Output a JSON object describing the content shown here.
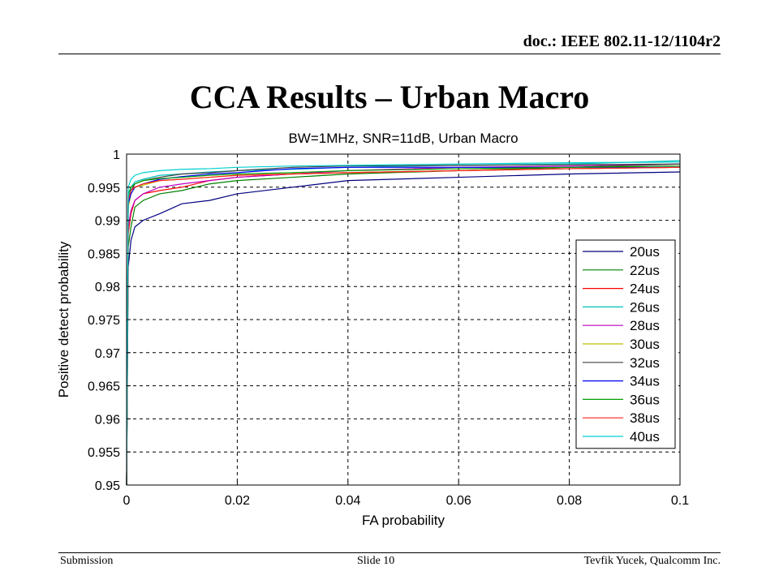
{
  "header": {
    "doc_id": "doc.: IEEE 802.11-12/1104r2"
  },
  "slide": {
    "title": "CCA Results – Urban Macro"
  },
  "footer": {
    "left": "Submission",
    "center": "Slide 10",
    "right": "Tevfik Yucek, Qualcomm Inc."
  },
  "chart_data": {
    "type": "line",
    "title": "BW=1MHz, SNR=11dB, Urban Macro",
    "xlabel": "FA probability",
    "ylabel": "Positive detect probability",
    "xlim": [
      0,
      0.1
    ],
    "ylim": [
      0.95,
      1
    ],
    "xticks": [
      "0",
      "0.02",
      "0.04",
      "0.06",
      "0.08",
      "0.1"
    ],
    "yticks": [
      "0.95",
      "0.955",
      "0.96",
      "0.965",
      "0.97",
      "0.975",
      "0.98",
      "0.985",
      "0.99",
      "0.995",
      "1"
    ],
    "grid": true,
    "legend_position": "right",
    "series": [
      {
        "name": "20us",
        "color": "#000080",
        "x": [
          0,
          0.0003,
          0.0008,
          0.0015,
          0.003,
          0.006,
          0.01,
          0.015,
          0.02,
          0.03,
          0.04,
          0.06,
          0.08,
          0.1
        ],
        "y": [
          0.95,
          0.983,
          0.987,
          0.989,
          0.99,
          0.991,
          0.9925,
          0.993,
          0.994,
          0.995,
          0.996,
          0.9965,
          0.997,
          0.9973
        ]
      },
      {
        "name": "22us",
        "color": "#008000",
        "x": [
          0,
          0.0003,
          0.0008,
          0.0015,
          0.003,
          0.006,
          0.01,
          0.015,
          0.02,
          0.03,
          0.04,
          0.06,
          0.08,
          0.1
        ],
        "y": [
          0.95,
          0.986,
          0.989,
          0.992,
          0.993,
          0.994,
          0.9945,
          0.9955,
          0.996,
          0.9965,
          0.997,
          0.9975,
          0.998,
          0.9985
        ]
      },
      {
        "name": "24us",
        "color": "#FF0000",
        "x": [
          0,
          0.0003,
          0.0008,
          0.0015,
          0.003,
          0.006,
          0.01,
          0.015,
          0.02,
          0.03,
          0.04,
          0.06,
          0.08,
          0.1
        ],
        "y": [
          0.95,
          0.988,
          0.991,
          0.993,
          0.994,
          0.9945,
          0.995,
          0.996,
          0.9965,
          0.997,
          0.9972,
          0.9975,
          0.9978,
          0.998
        ]
      },
      {
        "name": "26us",
        "color": "#00BFBF",
        "x": [
          0,
          0.0003,
          0.0008,
          0.0015,
          0.003,
          0.006,
          0.01,
          0.015,
          0.02,
          0.03,
          0.04,
          0.06,
          0.08,
          0.1
        ],
        "y": [
          0.95,
          0.9935,
          0.995,
          0.9958,
          0.9962,
          0.9968,
          0.997,
          0.9973,
          0.9975,
          0.9977,
          0.998,
          0.9983,
          0.9985,
          0.999
        ]
      },
      {
        "name": "28us",
        "color": "#BF00BF",
        "x": [
          0,
          0.0003,
          0.0008,
          0.0015,
          0.003,
          0.006,
          0.01,
          0.015,
          0.02,
          0.03,
          0.04,
          0.06,
          0.08,
          0.1
        ],
        "y": [
          0.95,
          0.989,
          0.9915,
          0.993,
          0.994,
          0.995,
          0.9955,
          0.996,
          0.9965,
          0.997,
          0.9975,
          0.998,
          0.9982,
          0.9985
        ]
      },
      {
        "name": "30us",
        "color": "#BFBF00",
        "x": [
          0,
          0.0003,
          0.0008,
          0.0015,
          0.003,
          0.006,
          0.01,
          0.015,
          0.02,
          0.03,
          0.04,
          0.06,
          0.08,
          0.1
        ],
        "y": [
          0.95,
          0.992,
          0.994,
          0.995,
          0.9953,
          0.996,
          0.9962,
          0.9965,
          0.9968,
          0.997,
          0.9972,
          0.9975,
          0.9978,
          0.998
        ]
      },
      {
        "name": "32us",
        "color": "#404040",
        "x": [
          0,
          0.0003,
          0.0008,
          0.0015,
          0.003,
          0.006,
          0.01,
          0.015,
          0.02,
          0.03,
          0.04,
          0.06,
          0.08,
          0.1
        ],
        "y": [
          0.95,
          0.993,
          0.9945,
          0.9955,
          0.996,
          0.9965,
          0.997,
          0.9972,
          0.9975,
          0.998,
          0.9982,
          0.9983,
          0.9984,
          0.9985
        ]
      },
      {
        "name": "34us",
        "color": "#0000FF",
        "x": [
          0,
          0.0003,
          0.0008,
          0.0015,
          0.003,
          0.006,
          0.01,
          0.015,
          0.02,
          0.03,
          0.04,
          0.06,
          0.08,
          0.1
        ],
        "y": [
          0.95,
          0.9925,
          0.994,
          0.995,
          0.9955,
          0.9962,
          0.9966,
          0.997,
          0.9972,
          0.9978,
          0.998,
          0.998,
          0.998,
          0.998
        ]
      },
      {
        "name": "36us",
        "color": "#00A000",
        "x": [
          0,
          0.0003,
          0.0008,
          0.0015,
          0.003,
          0.006,
          0.01,
          0.015,
          0.02,
          0.03,
          0.04,
          0.06,
          0.08,
          0.1
        ],
        "y": [
          0.95,
          0.994,
          0.995,
          0.9955,
          0.996,
          0.9963,
          0.9965,
          0.9968,
          0.997,
          0.9972,
          0.9975,
          0.9978,
          0.998,
          0.9982
        ]
      },
      {
        "name": "38us",
        "color": "#FF2020",
        "x": [
          0,
          0.0003,
          0.0008,
          0.0015,
          0.003,
          0.006,
          0.01,
          0.015,
          0.02,
          0.03,
          0.04,
          0.06,
          0.08,
          0.1
        ],
        "y": [
          0.95,
          0.993,
          0.9945,
          0.995,
          0.9955,
          0.996,
          0.9962,
          0.9965,
          0.9968,
          0.997,
          0.9972,
          0.9975,
          0.9978,
          0.998
        ]
      },
      {
        "name": "40us",
        "color": "#00CFCF",
        "x": [
          0,
          0.0003,
          0.0008,
          0.0015,
          0.003,
          0.006,
          0.01,
          0.015,
          0.02,
          0.03,
          0.04,
          0.06,
          0.08,
          0.1
        ],
        "y": [
          0.95,
          0.995,
          0.9962,
          0.9968,
          0.9972,
          0.9975,
          0.9977,
          0.9978,
          0.998,
          0.9982,
          0.9983,
          0.9985,
          0.9987,
          0.9988
        ]
      }
    ]
  }
}
